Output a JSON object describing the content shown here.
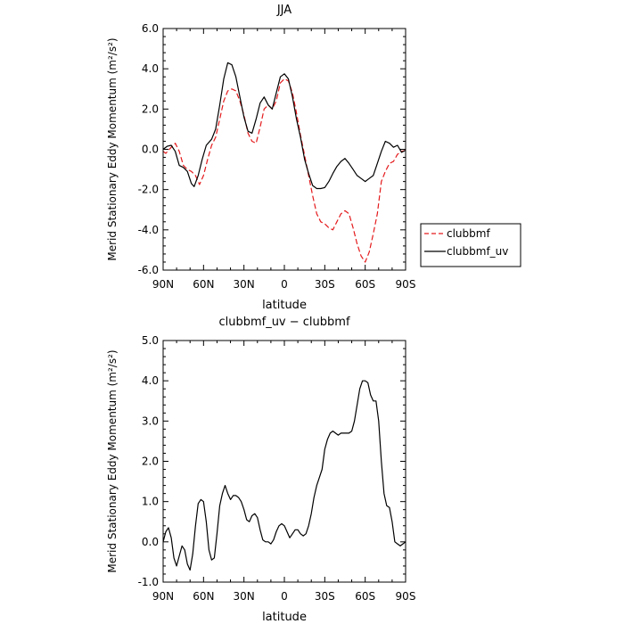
{
  "chart_data": [
    {
      "type": "line",
      "title": "JJA",
      "xlabel": "latitude",
      "ylabel": "Merid Stationary Eddy Momentum (m²/s²)",
      "xlim": [
        90,
        -90
      ],
      "ylim": [
        -6.0,
        6.0
      ],
      "x_ticks": [
        90,
        60,
        30,
        0,
        -30,
        -60,
        -90
      ],
      "x_tick_labels": [
        "90N",
        "60N",
        "30N",
        "0",
        "30S",
        "60S",
        "90S"
      ],
      "y_ticks": [
        -6.0,
        -4.0,
        -2.0,
        0.0,
        2.0,
        4.0,
        6.0
      ],
      "y_tick_labels": [
        "-6.0",
        "-4.0",
        "-2.0",
        "0.0",
        "2.0",
        "4.0",
        "6.0"
      ],
      "grid": false,
      "legend_position": "right-outside",
      "series": [
        {
          "name": "clubbmf",
          "color": "#e41a1c",
          "dash": "dashed",
          "points": [
            [
              90,
              -0.1
            ],
            [
              88,
              -0.2
            ],
            [
              84,
              0.1
            ],
            [
              81,
              0.3
            ],
            [
              78,
              -0.1
            ],
            [
              75,
              -0.8
            ],
            [
              72,
              -1.0
            ],
            [
              69,
              -1.1
            ],
            [
              66,
              -1.3
            ],
            [
              63,
              -1.75
            ],
            [
              60,
              -1.3
            ],
            [
              57,
              -0.5
            ],
            [
              54,
              0.2
            ],
            [
              51,
              0.6
            ],
            [
              48,
              1.5
            ],
            [
              45,
              2.4
            ],
            [
              42,
              2.9
            ],
            [
              39,
              3.0
            ],
            [
              36,
              2.9
            ],
            [
              33,
              2.4
            ],
            [
              30,
              1.7
            ],
            [
              27,
              0.8
            ],
            [
              24,
              0.4
            ],
            [
              21,
              0.3
            ],
            [
              18,
              1.1
            ],
            [
              15,
              2.0
            ],
            [
              12,
              2.2
            ],
            [
              9,
              2.0
            ],
            [
              6,
              2.4
            ],
            [
              3,
              3.3
            ],
            [
              0,
              3.5
            ],
            [
              -3,
              3.4
            ],
            [
              -6,
              2.8
            ],
            [
              -9,
              1.8
            ],
            [
              -12,
              0.7
            ],
            [
              -15,
              -0.3
            ],
            [
              -18,
              -1.3
            ],
            [
              -21,
              -2.3
            ],
            [
              -24,
              -3.2
            ],
            [
              -27,
              -3.6
            ],
            [
              -30,
              -3.7
            ],
            [
              -33,
              -3.9
            ],
            [
              -36,
              -4.0
            ],
            [
              -39,
              -3.6
            ],
            [
              -42,
              -3.2
            ],
            [
              -45,
              -3.05
            ],
            [
              -48,
              -3.2
            ],
            [
              -51,
              -3.9
            ],
            [
              -54,
              -4.7
            ],
            [
              -57,
              -5.3
            ],
            [
              -60,
              -5.6
            ],
            [
              -63,
              -5.1
            ],
            [
              -66,
              -4.2
            ],
            [
              -69,
              -3.2
            ],
            [
              -72,
              -1.6
            ],
            [
              -75,
              -1.1
            ],
            [
              -78,
              -0.7
            ],
            [
              -81,
              -0.6
            ],
            [
              -84,
              -0.25
            ],
            [
              -87,
              -0.1
            ],
            [
              -90,
              -0.05
            ]
          ]
        },
        {
          "name": "clubbmf_uv",
          "color": "#000000",
          "dash": "solid",
          "points": [
            [
              90,
              0.0
            ],
            [
              87,
              0.15
            ],
            [
              84,
              0.2
            ],
            [
              81,
              -0.1
            ],
            [
              78,
              -0.8
            ],
            [
              75,
              -0.9
            ],
            [
              72,
              -1.1
            ],
            [
              69,
              -1.7
            ],
            [
              67,
              -1.85
            ],
            [
              64,
              -1.3
            ],
            [
              61,
              -0.5
            ],
            [
              58,
              0.2
            ],
            [
              54,
              0.5
            ],
            [
              51,
              1.0
            ],
            [
              48,
              2.2
            ],
            [
              45,
              3.5
            ],
            [
              42,
              4.3
            ],
            [
              39,
              4.2
            ],
            [
              36,
              3.6
            ],
            [
              33,
              2.6
            ],
            [
              30,
              1.6
            ],
            [
              27,
              0.9
            ],
            [
              24,
              0.8
            ],
            [
              21,
              1.5
            ],
            [
              18,
              2.3
            ],
            [
              15,
              2.6
            ],
            [
              12,
              2.2
            ],
            [
              9,
              2.0
            ],
            [
              6,
              2.8
            ],
            [
              3,
              3.6
            ],
            [
              0,
              3.75
            ],
            [
              -3,
              3.5
            ],
            [
              -6,
              2.6
            ],
            [
              -9,
              1.5
            ],
            [
              -12,
              0.6
            ],
            [
              -15,
              -0.5
            ],
            [
              -18,
              -1.2
            ],
            [
              -21,
              -1.8
            ],
            [
              -24,
              -1.95
            ],
            [
              -27,
              -1.95
            ],
            [
              -30,
              -1.9
            ],
            [
              -33,
              -1.6
            ],
            [
              -36,
              -1.2
            ],
            [
              -39,
              -0.85
            ],
            [
              -42,
              -0.6
            ],
            [
              -45,
              -0.45
            ],
            [
              -48,
              -0.7
            ],
            [
              -51,
              -1.0
            ],
            [
              -54,
              -1.3
            ],
            [
              -57,
              -1.45
            ],
            [
              -60,
              -1.6
            ],
            [
              -63,
              -1.45
            ],
            [
              -66,
              -1.3
            ],
            [
              -69,
              -0.7
            ],
            [
              -72,
              -0.1
            ],
            [
              -75,
              0.4
            ],
            [
              -78,
              0.3
            ],
            [
              -81,
              0.1
            ],
            [
              -84,
              0.2
            ],
            [
              -87,
              -0.15
            ],
            [
              -90,
              -0.05
            ]
          ]
        }
      ]
    },
    {
      "type": "line",
      "title": "clubbmf_uv − clubbmf",
      "xlabel": "latitude",
      "ylabel": "Merid Stationary Eddy Momentum (m²/s²)",
      "xlim": [
        90,
        -90
      ],
      "ylim": [
        -1.0,
        5.0
      ],
      "x_ticks": [
        90,
        60,
        30,
        0,
        -30,
        -60,
        -90
      ],
      "x_tick_labels": [
        "90N",
        "60N",
        "30N",
        "0",
        "30S",
        "60S",
        "90S"
      ],
      "y_ticks": [
        -1.0,
        0.0,
        1.0,
        2.0,
        3.0,
        4.0,
        5.0
      ],
      "y_tick_labels": [
        "-1.0",
        "0.0",
        "1.0",
        "2.0",
        "3.0",
        "4.0",
        "5.0"
      ],
      "grid": false,
      "series": [
        {
          "color": "#000000",
          "dash": "solid",
          "points": [
            [
              90,
              0.0
            ],
            [
              88,
              0.25
            ],
            [
              86,
              0.35
            ],
            [
              84,
              0.1
            ],
            [
              82,
              -0.4
            ],
            [
              80,
              -0.6
            ],
            [
              78,
              -0.35
            ],
            [
              76,
              -0.1
            ],
            [
              74,
              -0.2
            ],
            [
              72,
              -0.55
            ],
            [
              70,
              -0.7
            ],
            [
              68,
              -0.3
            ],
            [
              66,
              0.4
            ],
            [
              64,
              0.95
            ],
            [
              62,
              1.05
            ],
            [
              60,
              1.0
            ],
            [
              58,
              0.5
            ],
            [
              56,
              -0.2
            ],
            [
              54,
              -0.45
            ],
            [
              52,
              -0.4
            ],
            [
              50,
              0.2
            ],
            [
              48,
              0.9
            ],
            [
              46,
              1.2
            ],
            [
              44,
              1.4
            ],
            [
              42,
              1.2
            ],
            [
              40,
              1.05
            ],
            [
              38,
              1.15
            ],
            [
              36,
              1.15
            ],
            [
              34,
              1.1
            ],
            [
              32,
              1.0
            ],
            [
              30,
              0.8
            ],
            [
              28,
              0.55
            ],
            [
              26,
              0.5
            ],
            [
              24,
              0.65
            ],
            [
              22,
              0.7
            ],
            [
              20,
              0.6
            ],
            [
              18,
              0.3
            ],
            [
              16,
              0.05
            ],
            [
              14,
              0.0
            ],
            [
              12,
              0.0
            ],
            [
              10,
              -0.05
            ],
            [
              8,
              0.05
            ],
            [
              6,
              0.25
            ],
            [
              4,
              0.4
            ],
            [
              2,
              0.45
            ],
            [
              0,
              0.4
            ],
            [
              -2,
              0.25
            ],
            [
              -4,
              0.1
            ],
            [
              -6,
              0.2
            ],
            [
              -8,
              0.3
            ],
            [
              -10,
              0.3
            ],
            [
              -12,
              0.2
            ],
            [
              -14,
              0.15
            ],
            [
              -16,
              0.2
            ],
            [
              -18,
              0.4
            ],
            [
              -20,
              0.7
            ],
            [
              -22,
              1.1
            ],
            [
              -24,
              1.4
            ],
            [
              -26,
              1.6
            ],
            [
              -28,
              1.8
            ],
            [
              -30,
              2.3
            ],
            [
              -32,
              2.55
            ],
            [
              -34,
              2.7
            ],
            [
              -36,
              2.75
            ],
            [
              -38,
              2.7
            ],
            [
              -40,
              2.65
            ],
            [
              -42,
              2.7
            ],
            [
              -44,
              2.7
            ],
            [
              -46,
              2.7
            ],
            [
              -48,
              2.7
            ],
            [
              -50,
              2.75
            ],
            [
              -52,
              3.0
            ],
            [
              -54,
              3.4
            ],
            [
              -56,
              3.8
            ],
            [
              -58,
              4.0
            ],
            [
              -60,
              4.0
            ],
            [
              -62,
              3.95
            ],
            [
              -64,
              3.65
            ],
            [
              -66,
              3.5
            ],
            [
              -68,
              3.5
            ],
            [
              -70,
              3.0
            ],
            [
              -72,
              2.0
            ],
            [
              -74,
              1.2
            ],
            [
              -76,
              0.9
            ],
            [
              -78,
              0.85
            ],
            [
              -80,
              0.5
            ],
            [
              -82,
              0.0
            ],
            [
              -84,
              -0.05
            ],
            [
              -86,
              -0.1
            ],
            [
              -88,
              -0.05
            ],
            [
              -90,
              0.0
            ]
          ]
        }
      ]
    }
  ]
}
